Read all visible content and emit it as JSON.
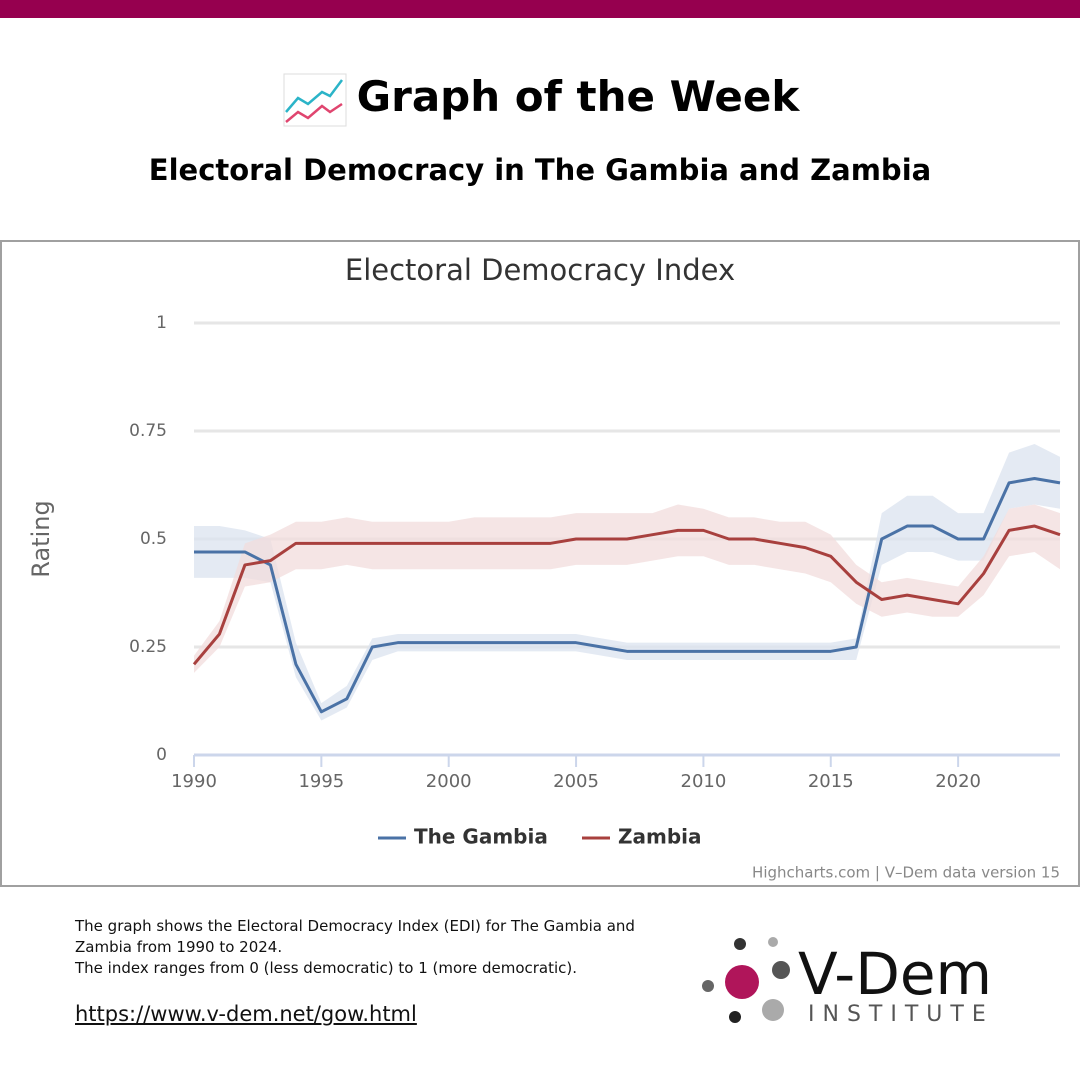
{
  "header": {
    "title": "Graph of the Week",
    "subtitle": "Electoral Democracy in The Gambia and Zambia"
  },
  "chart_data": {
    "type": "line",
    "title": "Electoral Democracy Index",
    "y_label": "Rating",
    "x": [
      1990,
      1991,
      1992,
      1993,
      1994,
      1995,
      1996,
      1997,
      1998,
      1999,
      2000,
      2001,
      2002,
      2003,
      2004,
      2005,
      2006,
      2007,
      2008,
      2009,
      2010,
      2011,
      2012,
      2013,
      2014,
      2015,
      2016,
      2017,
      2018,
      2019,
      2020,
      2021,
      2022,
      2023,
      2024
    ],
    "xlim": [
      1990,
      2024
    ],
    "xticks": [
      1990,
      1995,
      2000,
      2005,
      2010,
      2015,
      2020
    ],
    "ylim": [
      0,
      1
    ],
    "yticks": [
      0,
      0.25,
      0.5,
      0.75,
      1
    ],
    "grid": true,
    "series": [
      {
        "name": "The Gambia",
        "color": "#4a72a6",
        "band_color": "#dbe3ef",
        "values": [
          0.47,
          0.47,
          0.47,
          0.44,
          0.21,
          0.1,
          0.13,
          0.25,
          0.26,
          0.26,
          0.26,
          0.26,
          0.26,
          0.26,
          0.26,
          0.26,
          0.25,
          0.24,
          0.24,
          0.24,
          0.24,
          0.24,
          0.24,
          0.24,
          0.24,
          0.24,
          0.25,
          0.5,
          0.53,
          0.53,
          0.5,
          0.5,
          0.63,
          0.64,
          0.63
        ],
        "upper": [
          0.53,
          0.53,
          0.52,
          0.5,
          0.26,
          0.12,
          0.16,
          0.27,
          0.28,
          0.28,
          0.28,
          0.28,
          0.28,
          0.28,
          0.28,
          0.28,
          0.27,
          0.26,
          0.26,
          0.26,
          0.26,
          0.26,
          0.26,
          0.26,
          0.26,
          0.26,
          0.27,
          0.56,
          0.6,
          0.6,
          0.56,
          0.56,
          0.7,
          0.72,
          0.69
        ],
        "lower": [
          0.41,
          0.41,
          0.41,
          0.4,
          0.18,
          0.08,
          0.11,
          0.22,
          0.24,
          0.24,
          0.24,
          0.24,
          0.24,
          0.24,
          0.24,
          0.24,
          0.23,
          0.22,
          0.22,
          0.22,
          0.22,
          0.22,
          0.22,
          0.22,
          0.22,
          0.22,
          0.22,
          0.44,
          0.47,
          0.47,
          0.45,
          0.45,
          0.57,
          0.58,
          0.57
        ]
      },
      {
        "name": "Zambia",
        "color": "#a8403e",
        "band_color": "#f2dcdc",
        "values": [
          0.21,
          0.28,
          0.44,
          0.45,
          0.49,
          0.49,
          0.49,
          0.49,
          0.49,
          0.49,
          0.49,
          0.49,
          0.49,
          0.49,
          0.49,
          0.5,
          0.5,
          0.5,
          0.51,
          0.52,
          0.52,
          0.5,
          0.5,
          0.49,
          0.48,
          0.46,
          0.4,
          0.36,
          0.37,
          0.36,
          0.35,
          0.42,
          0.52,
          0.53,
          0.51
        ],
        "upper": [
          0.23,
          0.31,
          0.49,
          0.51,
          0.54,
          0.54,
          0.55,
          0.54,
          0.54,
          0.54,
          0.54,
          0.55,
          0.55,
          0.55,
          0.55,
          0.56,
          0.56,
          0.56,
          0.56,
          0.58,
          0.57,
          0.55,
          0.55,
          0.54,
          0.54,
          0.51,
          0.44,
          0.4,
          0.41,
          0.4,
          0.39,
          0.46,
          0.57,
          0.58,
          0.56
        ],
        "lower": [
          0.19,
          0.25,
          0.39,
          0.4,
          0.43,
          0.43,
          0.44,
          0.43,
          0.43,
          0.43,
          0.43,
          0.43,
          0.43,
          0.43,
          0.43,
          0.44,
          0.44,
          0.44,
          0.45,
          0.46,
          0.46,
          0.44,
          0.44,
          0.43,
          0.42,
          0.4,
          0.35,
          0.32,
          0.33,
          0.32,
          0.32,
          0.37,
          0.46,
          0.47,
          0.43
        ]
      }
    ],
    "credits": "Highcharts.com | V–Dem data version 15"
  },
  "caption": [
    "The graph shows the Electoral Democracy Index (EDI) for The Gambia and Zambia from 1990 to 2024.",
    "The index ranges from 0 (less democratic) to 1 (more democratic)."
  ],
  "link": "https://www.v-dem.net/gow.html",
  "logo": {
    "name": "V-Dem",
    "subtitle": "INSTITUTE"
  }
}
